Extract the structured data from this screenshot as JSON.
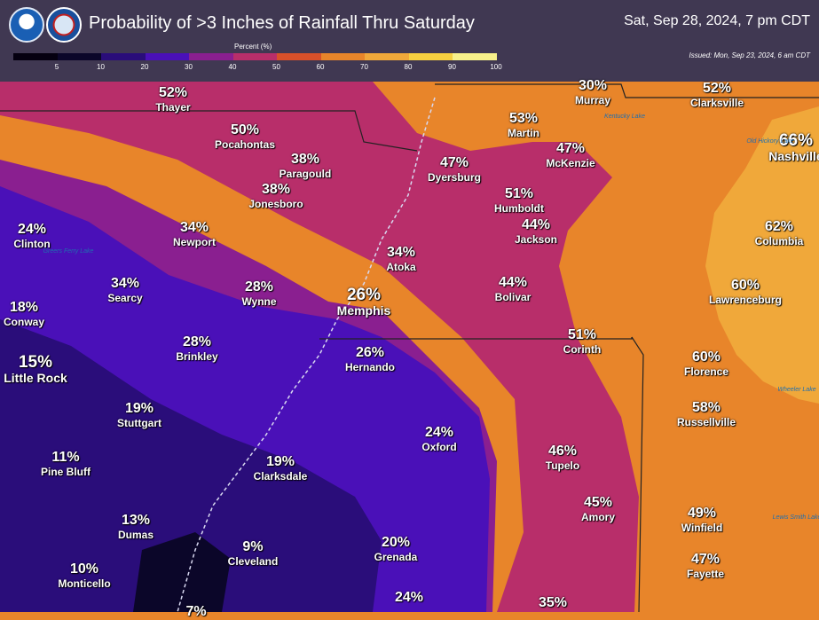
{
  "header": {
    "title": "Probability of >3 Inches of Rainfall Thru Saturday",
    "valid_time": "Sat, Sep 28, 2024, 7 pm CDT",
    "issued": "Issued: Mon, Sep 23, 2024, 6 am CDT",
    "logo_left": "NOAA",
    "logo_right": "NATIONAL WEATHER SERVICE"
  },
  "scale": {
    "title": "Percent (%)",
    "ticks": [
      "5",
      "10",
      "20",
      "30",
      "40",
      "50",
      "60",
      "70",
      "80",
      "90",
      "100"
    ],
    "colors": [
      "#050010",
      "#0b0629",
      "#2a0d7a",
      "#4a10b8",
      "#8a1f90",
      "#b82e6a",
      "#d8502a",
      "#e8852a",
      "#f0a83a",
      "#f6cf40",
      "#f7f08a"
    ]
  },
  "cities": [
    {
      "pct": "52%",
      "name": "Thayer"
    },
    {
      "pct": "50%",
      "name": "Pocahontas"
    },
    {
      "pct": "38%",
      "name": "Paragould"
    },
    {
      "pct": "38%",
      "name": "Jonesboro"
    },
    {
      "pct": "24%",
      "name": "Clinton"
    },
    {
      "pct": "34%",
      "name": "Newport"
    },
    {
      "pct": "34%",
      "name": "Searcy"
    },
    {
      "pct": "28%",
      "name": "Wynne"
    },
    {
      "pct": "18%",
      "name": "Conway"
    },
    {
      "pct": "28%",
      "name": "Brinkley"
    },
    {
      "pct": "15%",
      "name": "Little Rock"
    },
    {
      "pct": "19%",
      "name": "Stuttgart"
    },
    {
      "pct": "11%",
      "name": "Pine Bluff"
    },
    {
      "pct": "13%",
      "name": "Dumas"
    },
    {
      "pct": "10%",
      "name": "Monticello"
    },
    {
      "pct": "9%",
      "name": "Cleveland"
    },
    {
      "pct": "19%",
      "name": "Clarksdale"
    },
    {
      "pct": "20%",
      "name": "Grenada"
    },
    {
      "pct": "24%",
      "name": "Oxford"
    },
    {
      "pct": "26%",
      "name": "Hernando"
    },
    {
      "pct": "26%",
      "name": "Memphis"
    },
    {
      "pct": "34%",
      "name": "Atoka"
    },
    {
      "pct": "47%",
      "name": "Dyersburg"
    },
    {
      "pct": "53%",
      "name": "Martin"
    },
    {
      "pct": "47%",
      "name": "McKenzie"
    },
    {
      "pct": "51%",
      "name": "Humboldt"
    },
    {
      "pct": "44%",
      "name": "Jackson"
    },
    {
      "pct": "44%",
      "name": "Bolivar"
    },
    {
      "pct": "51%",
      "name": "Corinth"
    },
    {
      "pct": "46%",
      "name": "Tupelo"
    },
    {
      "pct": "45%",
      "name": "Amory"
    },
    {
      "pct": "35%",
      "name": ""
    },
    {
      "pct": "24%",
      "name": ""
    },
    {
      "pct": "7%",
      "name": ""
    },
    {
      "pct": "30%",
      "name": "Murray"
    },
    {
      "pct": "52%",
      "name": "Clarksville"
    },
    {
      "pct": "66%",
      "name": "Nashville"
    },
    {
      "pct": "62%",
      "name": "Columbia"
    },
    {
      "pct": "60%",
      "name": "Lawrenceburg"
    },
    {
      "pct": "60%",
      "name": "Florence"
    },
    {
      "pct": "58%",
      "name": "Russellville"
    },
    {
      "pct": "49%",
      "name": "Winfield"
    },
    {
      "pct": "47%",
      "name": "Fayette"
    }
  ],
  "lakes": [
    "Greers Ferry Lake",
    "Kentucky Lake",
    "Wheeler Lake",
    "Lewis Smith Lake",
    "Old Hickory Lake"
  ]
}
